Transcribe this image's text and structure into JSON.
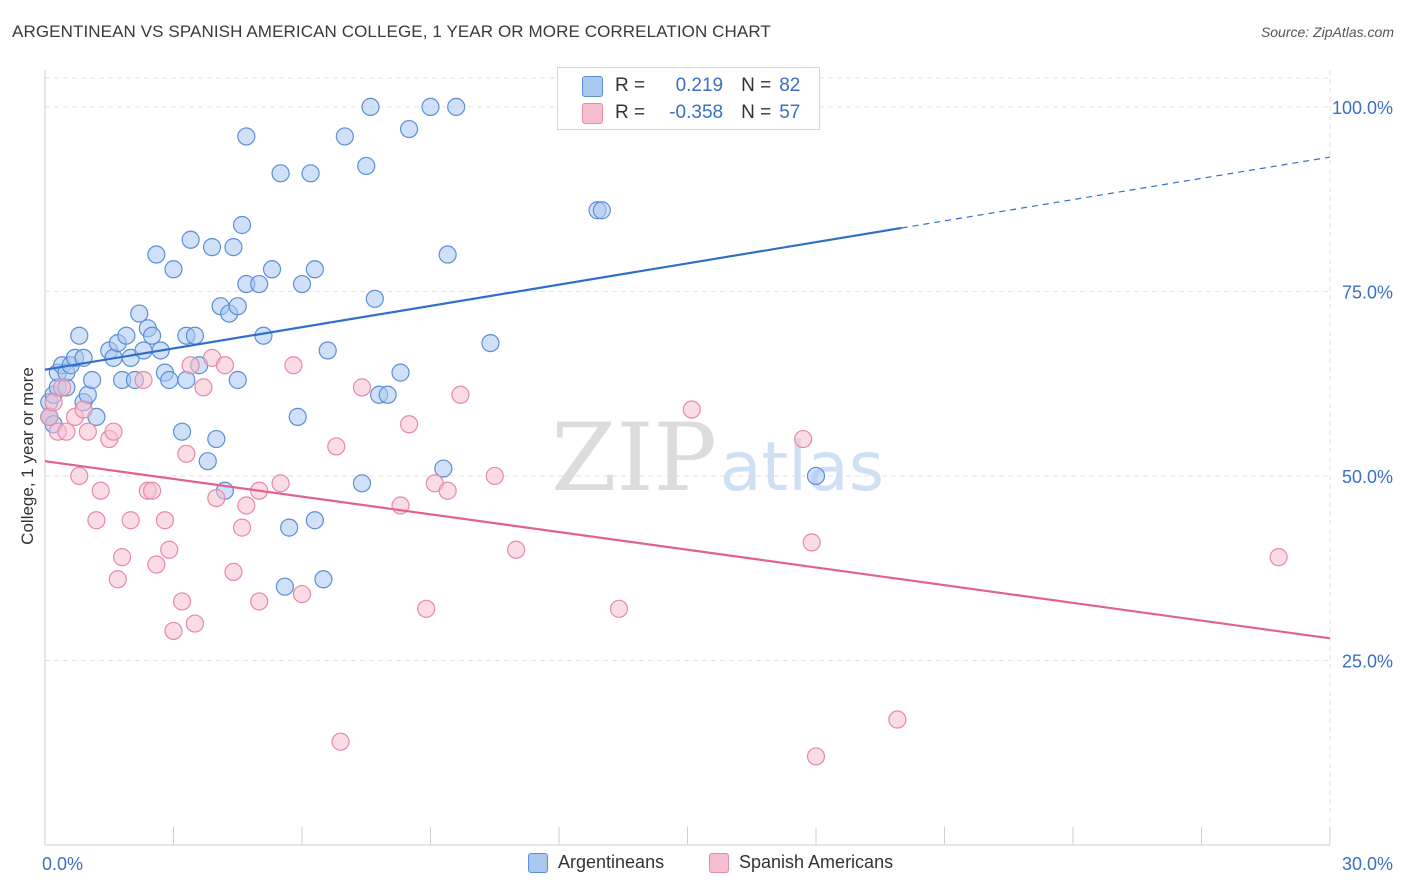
{
  "title": "ARGENTINEAN VS SPANISH AMERICAN COLLEGE, 1 YEAR OR MORE CORRELATION CHART",
  "source": "Source: ZipAtlas.com",
  "colors": {
    "blue_fill": "#a9c8f0",
    "blue_stroke": "#5a8fd6",
    "blue_line": "#2f6fcc",
    "pink_fill": "#f5bfd0",
    "pink_stroke": "#e889a8",
    "pink_line": "#e0628e",
    "grid": "#e2e2e2",
    "tick_label": "#3b6fc4"
  },
  "stats": [
    {
      "r_label": "R =",
      "r": "0.219",
      "n_label": "N =",
      "n": "82"
    },
    {
      "r_label": "R =",
      "r": "-0.358",
      "n_label": "N =",
      "n": "57"
    }
  ],
  "watermark": {
    "zip": "ZIP",
    "atlas": "atlas"
  },
  "chart_data": {
    "type": "scatter",
    "xlabel": "",
    "ylabel": "College, 1 year or more",
    "xlim": [
      0,
      30
    ],
    "ylim": [
      0,
      105
    ],
    "x_tick_labels": [
      {
        "v": 0,
        "label": "0.0%"
      },
      {
        "v": 30,
        "label": "30.0%"
      }
    ],
    "x_minor_ticks": [
      3,
      6,
      9,
      12,
      15,
      18,
      21,
      24,
      27,
      30
    ],
    "y_ticks": [
      {
        "v": 25,
        "label": "25.0%"
      },
      {
        "v": 50,
        "label": "50.0%"
      },
      {
        "v": 75,
        "label": "75.0%"
      },
      {
        "v": 100,
        "label": "100.0%"
      }
    ],
    "grid": true,
    "legend_position": "bottom-center",
    "series": [
      {
        "name": "Argentineans",
        "trend": {
          "x0": 0,
          "y0": 64.4,
          "x1": 20.0,
          "y1": 83.6,
          "dash_to_x": 30,
          "dash_to_y": 93.2
        },
        "points": [
          [
            0.1,
            60
          ],
          [
            0.1,
            58
          ],
          [
            0.2,
            61
          ],
          [
            0.3,
            62
          ],
          [
            0.3,
            64
          ],
          [
            0.4,
            65
          ],
          [
            0.5,
            62
          ],
          [
            0.5,
            64
          ],
          [
            0.6,
            65
          ],
          [
            0.7,
            66
          ],
          [
            0.8,
            69
          ],
          [
            0.9,
            66
          ],
          [
            0.9,
            60
          ],
          [
            1.0,
            61
          ],
          [
            1.1,
            63
          ],
          [
            1.2,
            58
          ],
          [
            1.5,
            67
          ],
          [
            1.6,
            66
          ],
          [
            1.7,
            68
          ],
          [
            1.8,
            63
          ],
          [
            1.9,
            69
          ],
          [
            2.0,
            66
          ],
          [
            2.1,
            63
          ],
          [
            2.2,
            72
          ],
          [
            2.3,
            67
          ],
          [
            2.4,
            70
          ],
          [
            2.5,
            69
          ],
          [
            2.6,
            80
          ],
          [
            2.7,
            67
          ],
          [
            2.8,
            64
          ],
          [
            2.9,
            63
          ],
          [
            3.0,
            78
          ],
          [
            3.2,
            56
          ],
          [
            3.3,
            69
          ],
          [
            3.3,
            63
          ],
          [
            3.4,
            82
          ],
          [
            3.5,
            69
          ],
          [
            3.6,
            65
          ],
          [
            3.8,
            52
          ],
          [
            3.9,
            81
          ],
          [
            4.0,
            55
          ],
          [
            4.1,
            73
          ],
          [
            4.2,
            48
          ],
          [
            4.3,
            72
          ],
          [
            4.4,
            81
          ],
          [
            4.5,
            63
          ],
          [
            4.5,
            73
          ],
          [
            4.6,
            84
          ],
          [
            4.7,
            76
          ],
          [
            4.7,
            96
          ],
          [
            5.0,
            76
          ],
          [
            5.1,
            69
          ],
          [
            5.3,
            78
          ],
          [
            5.5,
            91
          ],
          [
            5.6,
            35
          ],
          [
            5.7,
            43
          ],
          [
            5.9,
            58
          ],
          [
            6.0,
            76
          ],
          [
            6.2,
            91
          ],
          [
            6.3,
            44
          ],
          [
            6.3,
            78
          ],
          [
            6.5,
            36
          ],
          [
            6.6,
            67
          ],
          [
            7.0,
            96
          ],
          [
            7.4,
            49
          ],
          [
            7.5,
            92
          ],
          [
            7.6,
            100
          ],
          [
            7.7,
            74
          ],
          [
            7.8,
            61
          ],
          [
            8.0,
            61
          ],
          [
            8.3,
            64
          ],
          [
            8.5,
            97
          ],
          [
            9.0,
            100
          ],
          [
            9.3,
            51
          ],
          [
            9.4,
            80
          ],
          [
            9.6,
            100
          ],
          [
            10.4,
            68
          ],
          [
            12.9,
            86
          ],
          [
            13.0,
            86
          ],
          [
            18.0,
            50
          ],
          [
            0.1,
            58
          ],
          [
            0.2,
            57
          ]
        ]
      },
      {
        "name": "Spanish Americans",
        "trend": {
          "x0": 0,
          "y0": 52.0,
          "x1": 30,
          "y1": 28.0
        },
        "points": [
          [
            0.1,
            58
          ],
          [
            0.2,
            60
          ],
          [
            0.3,
            56
          ],
          [
            0.4,
            62
          ],
          [
            0.5,
            56
          ],
          [
            0.7,
            58
          ],
          [
            0.8,
            50
          ],
          [
            0.9,
            59
          ],
          [
            1.0,
            56
          ],
          [
            1.2,
            44
          ],
          [
            1.3,
            48
          ],
          [
            1.5,
            55
          ],
          [
            1.6,
            56
          ],
          [
            1.7,
            36
          ],
          [
            1.8,
            39
          ],
          [
            2.0,
            44
          ],
          [
            2.3,
            63
          ],
          [
            2.4,
            48
          ],
          [
            2.5,
            48
          ],
          [
            2.6,
            38
          ],
          [
            2.8,
            44
          ],
          [
            2.9,
            40
          ],
          [
            3.0,
            29
          ],
          [
            3.2,
            33
          ],
          [
            3.3,
            53
          ],
          [
            3.4,
            65
          ],
          [
            3.5,
            30
          ],
          [
            3.7,
            62
          ],
          [
            3.9,
            66
          ],
          [
            4.0,
            47
          ],
          [
            4.2,
            65
          ],
          [
            4.4,
            37
          ],
          [
            4.6,
            43
          ],
          [
            4.7,
            46
          ],
          [
            5.0,
            48
          ],
          [
            5.0,
            33
          ],
          [
            5.5,
            49
          ],
          [
            5.8,
            65
          ],
          [
            6.0,
            34
          ],
          [
            6.8,
            54
          ],
          [
            6.9,
            14
          ],
          [
            7.4,
            62
          ],
          [
            8.3,
            46
          ],
          [
            8.5,
            57
          ],
          [
            8.9,
            32
          ],
          [
            9.1,
            49
          ],
          [
            9.4,
            48
          ],
          [
            9.7,
            61
          ],
          [
            10.5,
            50
          ],
          [
            11.0,
            40
          ],
          [
            13.4,
            32
          ],
          [
            15.1,
            59
          ],
          [
            17.7,
            55
          ],
          [
            17.9,
            41
          ],
          [
            18.0,
            12
          ],
          [
            19.9,
            17
          ],
          [
            28.8,
            39
          ]
        ]
      }
    ]
  }
}
